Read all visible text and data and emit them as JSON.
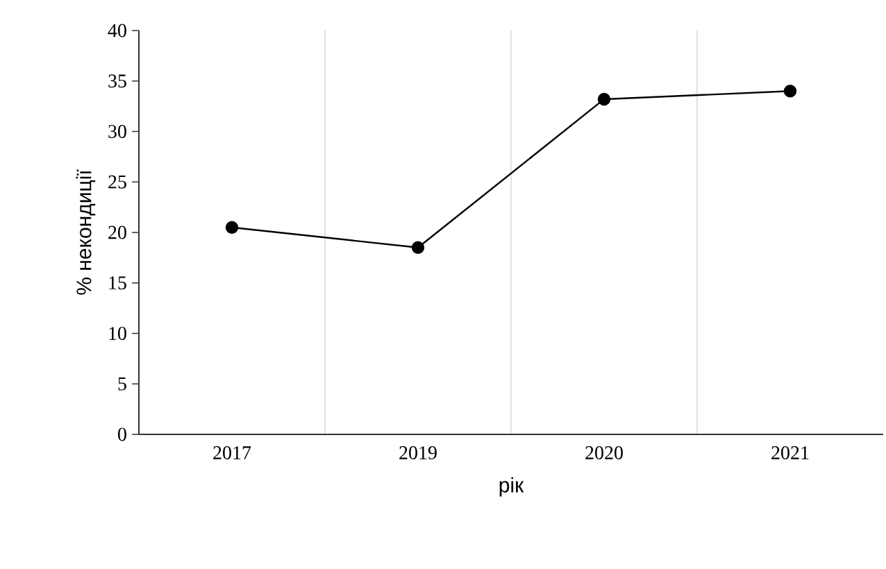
{
  "chart_data": {
    "type": "line",
    "xlabel": "рік",
    "ylabel": "%   некондиції",
    "categories": [
      "2017",
      "2019",
      "2020",
      "2021"
    ],
    "series": [
      {
        "color": "#000000",
        "values": [
          20.5,
          18.5,
          33.2,
          34.0
        ]
      }
    ],
    "ylim": [
      0,
      40
    ],
    "yticks": [
      0,
      5,
      10,
      15,
      20,
      25,
      30,
      35,
      40
    ],
    "grid": "x",
    "marker": "circle",
    "line_style": "solid"
  }
}
